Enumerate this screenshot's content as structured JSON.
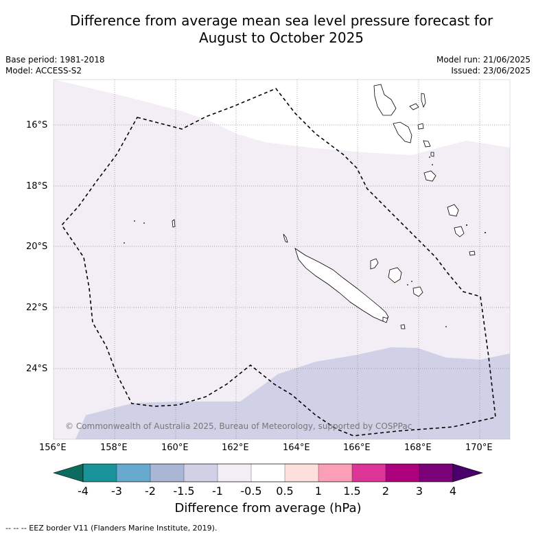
{
  "title_line1": "Difference from average mean sea level pressure forecast for",
  "title_line2": "August to October 2025",
  "meta": {
    "base_period": "Base period: 1981-2018",
    "model": "Model: ACCESS-S2",
    "model_run": "Model run: 21/06/2025",
    "issued": "Issued: 23/06/2025"
  },
  "lat_labels": [
    "16°S",
    "18°S",
    "20°S",
    "22°S",
    "24°S"
  ],
  "lon_labels": [
    "156°E",
    "158°E",
    "160°E",
    "162°E",
    "164°E",
    "166°E",
    "168°E",
    "170°E"
  ],
  "copyright": "© Commonwealth of Australia 2025, Bureau of Meteorology, supported by COSPPac",
  "colorbar": {
    "title": "Difference from average (hPa)",
    "labels": [
      "-4",
      "-3",
      "-2",
      "-1.5",
      "-1",
      "-0.5",
      "0.5",
      "1",
      "1.5",
      "2",
      "3",
      "4"
    ],
    "colors": {
      "below": "#0b6b5f",
      "bins": [
        "#1a9299",
        "#67a9cf",
        "#aab6d5",
        "#d0d1e6",
        "#f3eef6",
        "#ffffff",
        "#fde0dd",
        "#fa9fb5",
        "#dd3497",
        "#ae017e",
        "#7a0177"
      ],
      "above": "#49006a"
    }
  },
  "footer": "--  --  -- EEZ border V11 (Flanders Marine Institute, 2019)."
}
